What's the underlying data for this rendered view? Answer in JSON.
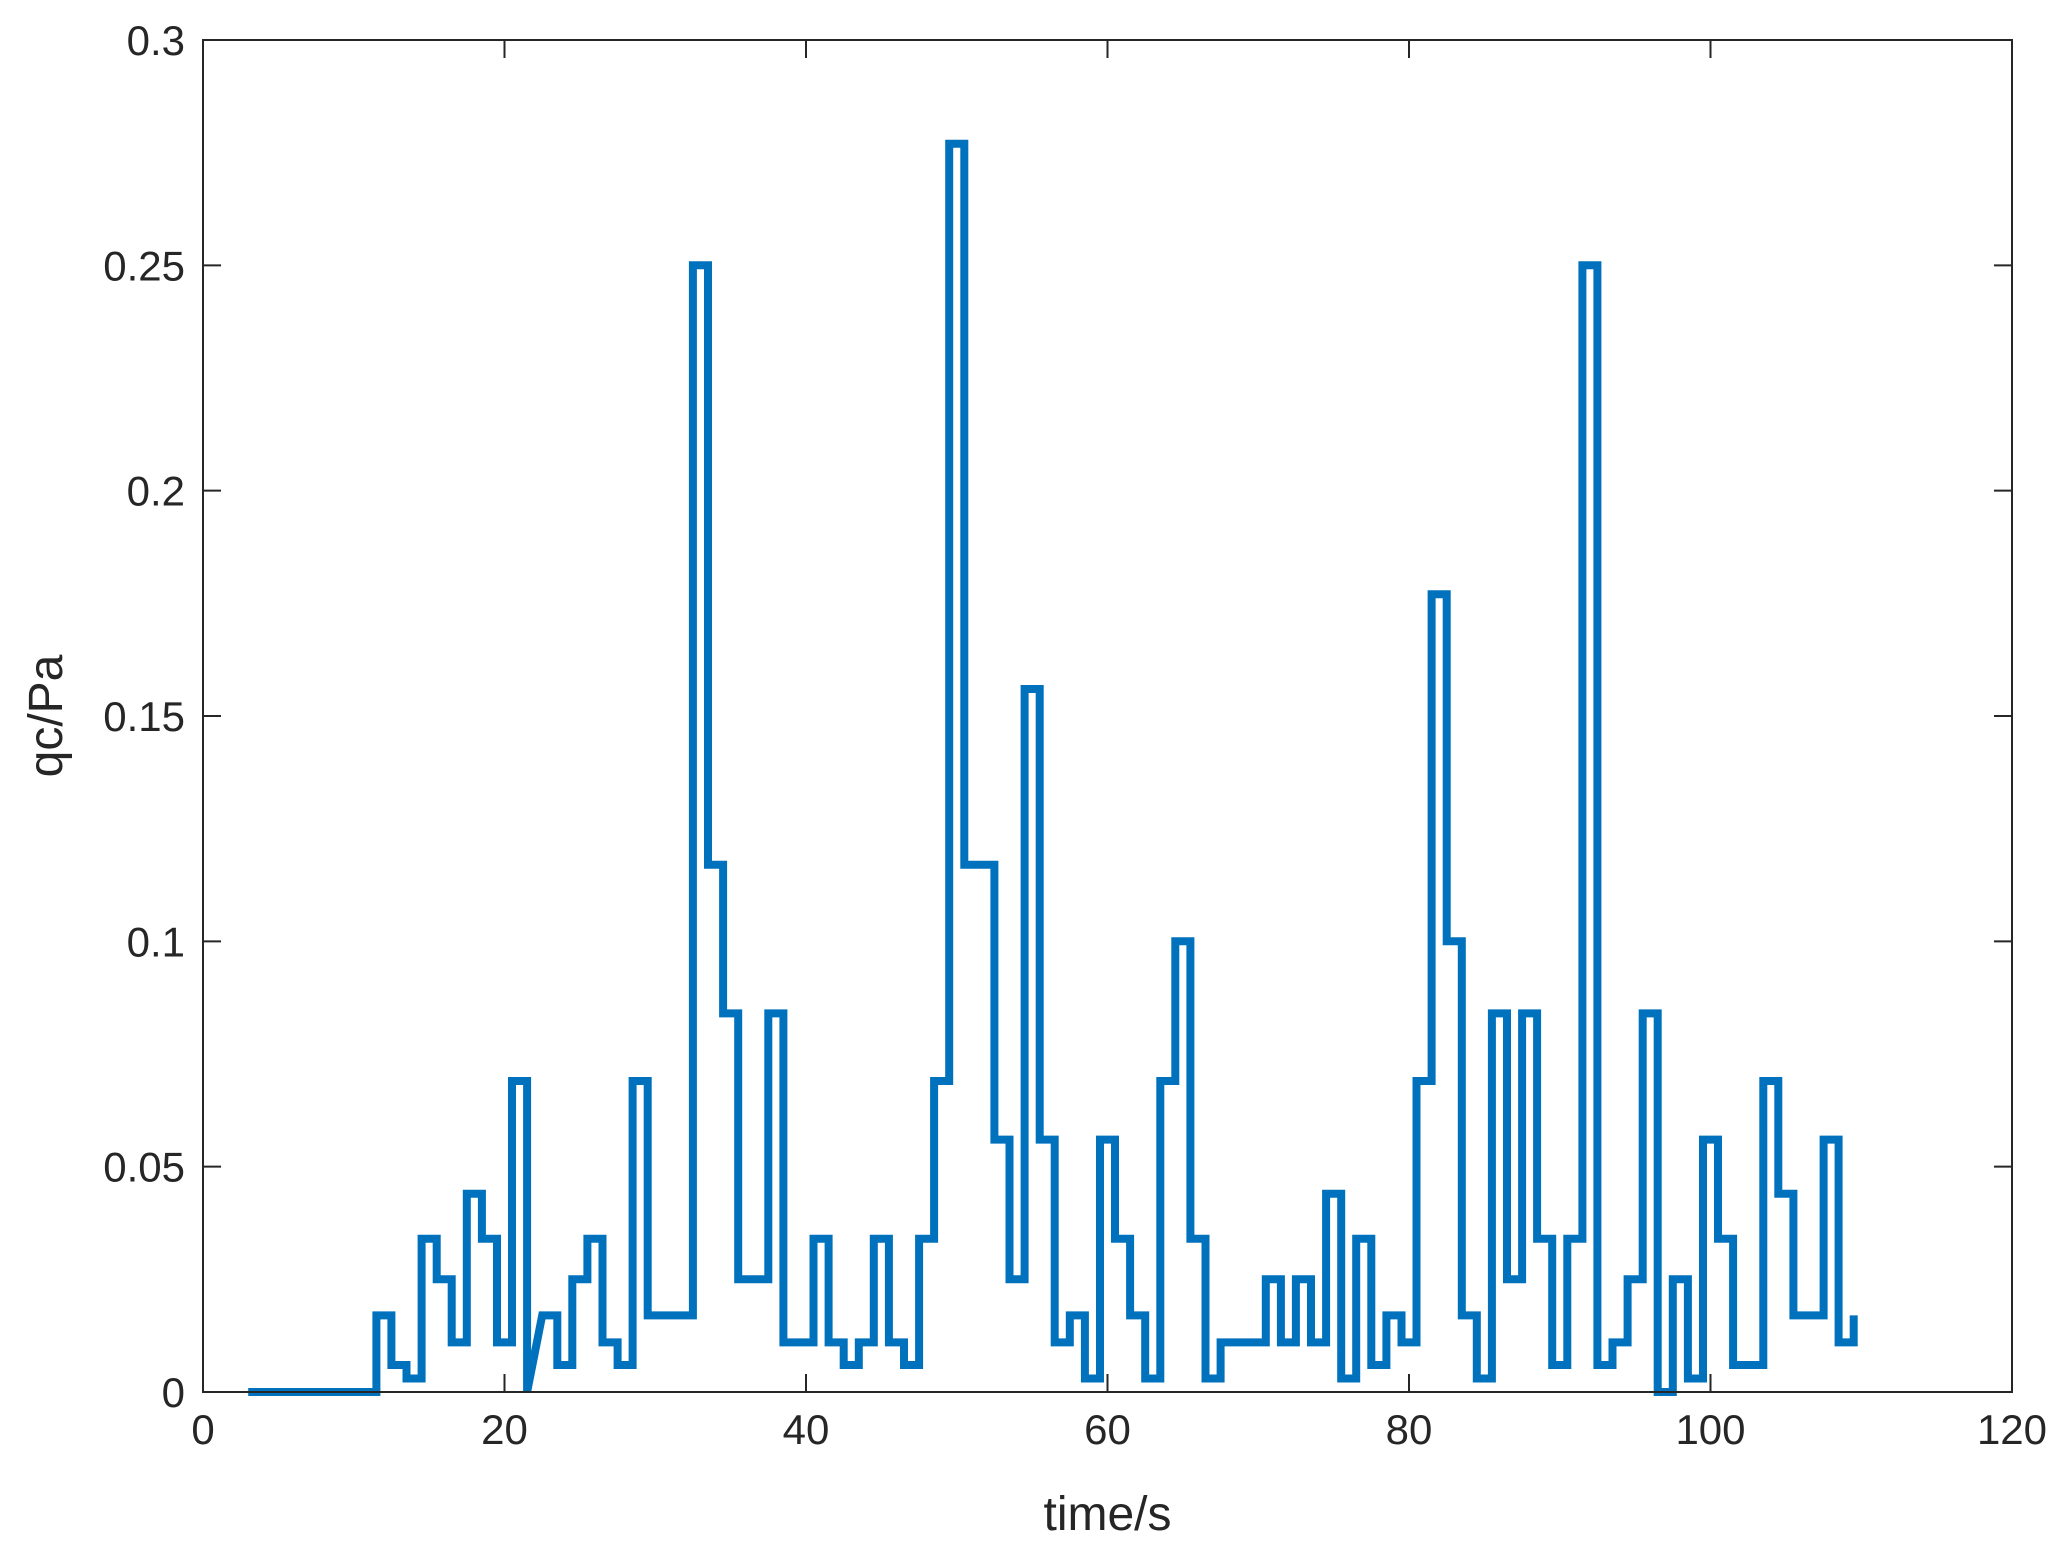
{
  "chart_data": {
    "type": "line",
    "line_style": "stairs",
    "xlabel": "time/s",
    "ylabel": "qc/Pa",
    "xlim": [
      0,
      120
    ],
    "ylim": [
      0,
      0.3
    ],
    "xticks": [
      0,
      20,
      40,
      60,
      80,
      100,
      120
    ],
    "xtick_labels": [
      "0",
      "20",
      "40",
      "60",
      "80",
      "100",
      "120"
    ],
    "yticks": [
      0,
      0.05,
      0.1,
      0.15,
      0.2,
      0.25,
      0.3
    ],
    "ytick_labels": [
      "0",
      "0.05",
      "0.1",
      "0.15",
      "0.2",
      "0.25",
      "0.3"
    ],
    "grid": false,
    "box": true,
    "colors": {
      "series": "#0072BD",
      "axes": "#262626",
      "background": "#ffffff"
    },
    "series": [
      {
        "x": [
          3,
          11.5,
          11.5,
          12.5,
          12.5,
          13.5,
          13.5,
          14.5,
          14.5,
          15.5,
          15.5,
          16.5,
          16.5,
          17.5,
          17.5,
          18.5,
          18.5,
          19.5,
          19.5,
          20.5,
          20.5,
          21.5,
          21.5,
          22.5,
          23.5,
          23.5,
          24.5,
          24.5,
          25.5,
          25.5,
          26.5,
          26.5,
          27.5,
          27.5,
          28.5,
          28.5,
          29.5,
          29.5,
          32.5,
          32.5,
          33.5,
          33.5,
          34.5,
          34.5,
          35.5,
          35.5,
          37.5,
          37.5,
          38.5,
          38.5,
          40.5,
          40.5,
          41.5,
          41.5,
          42.5,
          42.5,
          43.5,
          43.5,
          44.5,
          44.5,
          45.5,
          45.5,
          46.5,
          46.5,
          47.5,
          47.5,
          48.5,
          48.5,
          49.5,
          49.5,
          50.5,
          50.5,
          52.5,
          52.5,
          53.5,
          53.5,
          54.5,
          54.5,
          55.5,
          55.5,
          56.5,
          56.5,
          57.5,
          57.5,
          58.5,
          58.5,
          59.5,
          59.5,
          60.5,
          60.5,
          61.5,
          61.5,
          62.5,
          62.5,
          63.5,
          63.5,
          64.5,
          64.5,
          65.5,
          65.5,
          66.5,
          66.5,
          67.5,
          67.5,
          70.5,
          70.5,
          71.5,
          71.5,
          72.5,
          72.5,
          73.5,
          73.5,
          74.5,
          74.5,
          75.5,
          75.5,
          76.5,
          76.5,
          77.5,
          77.5,
          78.5,
          78.5,
          79.5,
          79.5,
          80.5,
          80.5,
          81.5,
          81.5,
          82.5,
          82.5,
          83.5,
          83.5,
          84.5,
          84.5,
          85.5,
          85.5,
          86.5,
          86.5,
          87.5,
          87.5,
          88.5,
          88.5,
          89.5,
          89.5,
          90.5,
          90.5,
          91.5,
          91.5,
          92.5,
          92.5,
          93.5,
          93.5,
          94.5,
          94.5,
          95.5,
          95.5,
          96.5,
          96.5,
          97.5,
          97.5,
          98.5,
          98.5,
          99.5,
          99.5,
          100.5,
          100.5,
          101.5,
          101.5,
          103.5,
          103.5,
          104.5,
          104.5,
          105.5,
          105.5,
          107.5,
          107.5,
          108.5,
          108.5,
          109.5,
          109.5
        ],
        "y": [
          0,
          0,
          0.017,
          0.017,
          0.006,
          0.006,
          0.003,
          0.003,
          0.034,
          0.034,
          0.025,
          0.025,
          0.011,
          0.011,
          0.044,
          0.044,
          0.034,
          0.034,
          0.011,
          0.011,
          0.069,
          0.069,
          0,
          0.017,
          0.017,
          0.006,
          0.006,
          0.025,
          0.025,
          0.034,
          0.034,
          0.011,
          0.011,
          0.006,
          0.006,
          0.069,
          0.069,
          0.017,
          0.017,
          0.25,
          0.25,
          0.117,
          0.117,
          0.084,
          0.084,
          0.025,
          0.025,
          0.084,
          0.084,
          0.011,
          0.011,
          0.034,
          0.034,
          0.011,
          0.011,
          0.006,
          0.006,
          0.011,
          0.011,
          0.034,
          0.034,
          0.011,
          0.011,
          0.006,
          0.006,
          0.034,
          0.034,
          0.069,
          0.069,
          0.277,
          0.277,
          0.117,
          0.117,
          0.056,
          0.056,
          0.025,
          0.025,
          0.156,
          0.156,
          0.056,
          0.056,
          0.011,
          0.011,
          0.017,
          0.017,
          0.003,
          0.003,
          0.056,
          0.056,
          0.034,
          0.034,
          0.017,
          0.017,
          0.003,
          0.003,
          0.069,
          0.069,
          0.1,
          0.1,
          0.034,
          0.034,
          0.003,
          0.003,
          0.011,
          0.011,
          0.025,
          0.025,
          0.011,
          0.011,
          0.025,
          0.025,
          0.011,
          0.011,
          0.044,
          0.044,
          0.003,
          0.003,
          0.034,
          0.034,
          0.006,
          0.006,
          0.017,
          0.017,
          0.011,
          0.011,
          0.069,
          0.069,
          0.177,
          0.177,
          0.1,
          0.1,
          0.017,
          0.017,
          0.003,
          0.003,
          0.084,
          0.084,
          0.025,
          0.025,
          0.084,
          0.084,
          0.034,
          0.034,
          0.006,
          0.006,
          0.034,
          0.034,
          0.25,
          0.25,
          0.006,
          0.006,
          0.011,
          0.011,
          0.025,
          0.025,
          0.084,
          0.084,
          0,
          0,
          0.025,
          0.025,
          0.003,
          0.003,
          0.056,
          0.056,
          0.034,
          0.034,
          0.006,
          0.006,
          0.069,
          0.069,
          0.044,
          0.044,
          0.017,
          0.017,
          0.056,
          0.056,
          0.011,
          0.011,
          0.017
        ]
      }
    ]
  }
}
